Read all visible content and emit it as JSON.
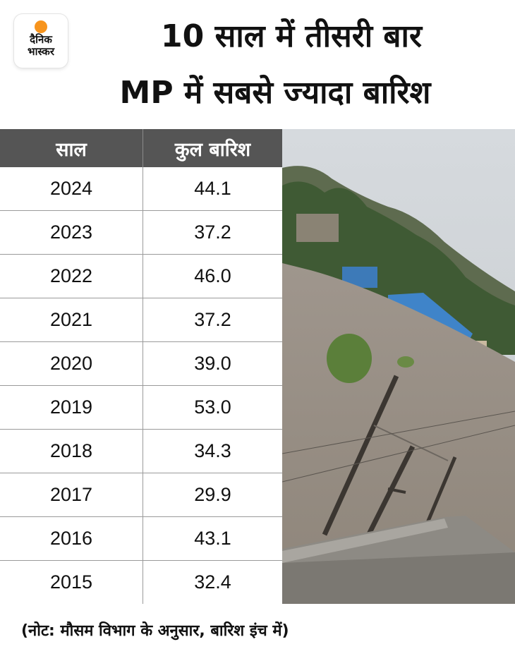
{
  "brand": {
    "line1": "दैनिक",
    "line2": "भास्कर",
    "sun_color": "#f7941d"
  },
  "title": {
    "line1": "10 साल में तीसरी बार",
    "line2": "MP में सबसे ज्यादा बारिश"
  },
  "chart_data": {
    "type": "table",
    "columns": [
      "साल",
      "कुल बारिश"
    ],
    "rows": [
      {
        "year": "2024",
        "rain": "44.1"
      },
      {
        "year": "2023",
        "rain": "37.2"
      },
      {
        "year": "2022",
        "rain": "46.0"
      },
      {
        "year": "2021",
        "rain": "37.2"
      },
      {
        "year": "2020",
        "rain": "39.0"
      },
      {
        "year": "2019",
        "rain": "53.0"
      },
      {
        "year": "2018",
        "rain": "34.3"
      },
      {
        "year": "2017",
        "rain": "29.9"
      },
      {
        "year": "2016",
        "rain": "43.1"
      },
      {
        "year": "2015",
        "rain": "32.4"
      }
    ],
    "header_color": "#555555"
  },
  "note": "(नोट: मौसम विभाग के अनुसार, बारिश इंच में)"
}
